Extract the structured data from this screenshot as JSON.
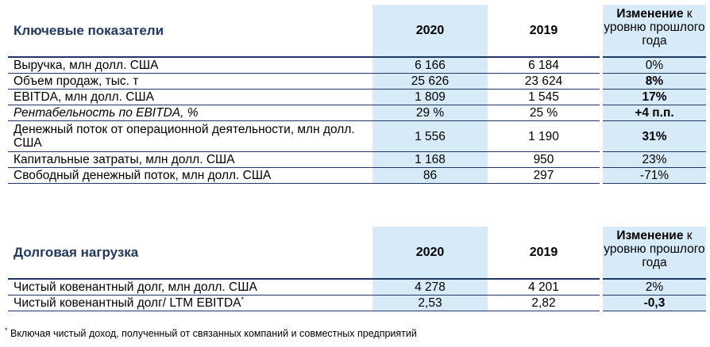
{
  "table1": {
    "title": "Ключевые показатели",
    "col_2020": "2020",
    "col_2019": "2019",
    "change_bold": "Изменение",
    "change_rest": " к уровню прошлого года",
    "rows": [
      {
        "label": "Выручка, млн долл. США",
        "v2020": "6 166",
        "v2019": "6 184",
        "chg": "0%"
      },
      {
        "label": "Объем продаж, тыс. т",
        "v2020": "25 626",
        "v2019": "23 624",
        "chg": "8%"
      },
      {
        "label": "EBITDA, млн долл. США",
        "v2020": "1 809",
        "v2019": "1 545",
        "chg": "17%"
      },
      {
        "label": "Рентабельность по EBITDA, %",
        "v2020": "29 %",
        "v2019": "25 %",
        "chg": "+4 п.п."
      },
      {
        "label": "Денежный поток от операционной деятельности, млн долл. США",
        "v2020": "1 556",
        "v2019": "1 190",
        "chg": "31%"
      },
      {
        "label": "Капитальные затраты, млн долл. США",
        "v2020": "1 168",
        "v2019": "950",
        "chg": "23%"
      },
      {
        "label": "Свободный денежный поток, млн долл. США",
        "v2020": "86",
        "v2019": "297",
        "chg": "-71%"
      }
    ]
  },
  "table2": {
    "title": "Долговая нагрузка",
    "col_2020": "2020",
    "col_2019": "2019",
    "change_bold": "Изменение",
    "change_rest": " к уровню прошлого года",
    "rows": [
      {
        "label": "Чистый ковенантный долг, млн долл. США",
        "v2020": "4 278",
        "v2019": "4 201",
        "chg": "2%"
      },
      {
        "label": "Чистый ковенантный долг/ LTM EBITDA",
        "label_sup": "*",
        "v2020": "2,53",
        "v2019": "2,82",
        "chg": "-0,3"
      }
    ]
  },
  "footnote": {
    "mark": "*",
    "text": " Включая чистый доход, полученный от связанных компаний и совместных предприятий"
  }
}
